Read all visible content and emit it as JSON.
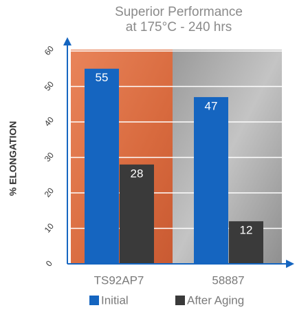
{
  "chart_data": {
    "type": "bar",
    "title": "Superior Performance",
    "subtitle": "at 175°C - 240 hrs",
    "y_label": "% ELONGATION",
    "categories": [
      "TS92AP7",
      "58887"
    ],
    "series": [
      {
        "name": "Initial",
        "color": "#1565c0",
        "values": [
          55,
          47
        ]
      },
      {
        "name": "After Aging",
        "color": "#3a3a3a",
        "values": [
          28,
          12
        ]
      }
    ],
    "ylim": [
      0,
      60
    ],
    "yticks": [
      0,
      10,
      20,
      30,
      40,
      50,
      60
    ],
    "grid": true
  }
}
